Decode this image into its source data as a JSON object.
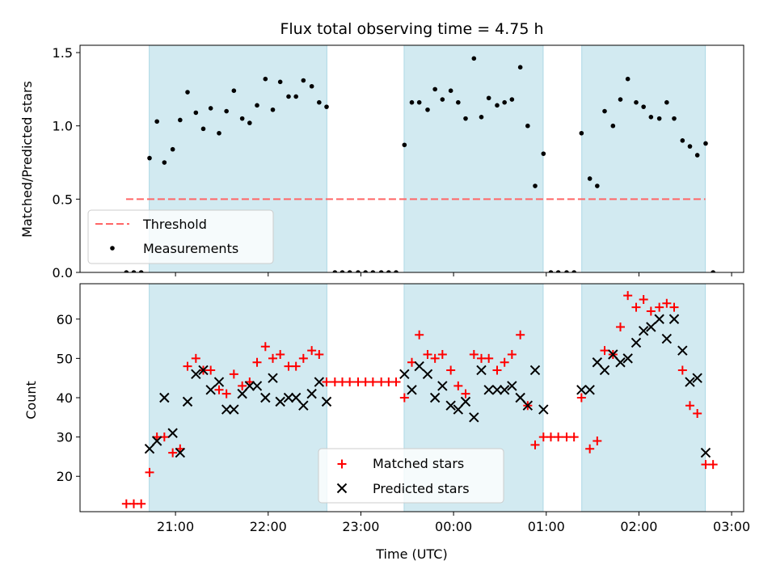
{
  "figure": {
    "title": "Flux total observing time = 4.75 h",
    "xlabel": "Time (UTC)",
    "x_ticks": [
      "21:00",
      "22:00",
      "23:00",
      "00:00",
      "01:00",
      "02:00",
      "03:00"
    ]
  },
  "colors": {
    "band": "#add8e6",
    "threshold": "#ff6666",
    "measurement": "#000000",
    "matched": "#ff0000",
    "predicted": "#000000"
  },
  "chart_data": [
    {
      "type": "scatter",
      "ylabel": "Matched/Predicted stars",
      "x_unit": "hours after 20:00 UTC",
      "xlim": [
        19.97,
        27.13
      ],
      "ylim": [
        0.0,
        1.55
      ],
      "y_ticks": [
        "0.0",
        "0.5",
        "1.0",
        "1.5"
      ],
      "observing_windows_utc": [
        [
          "20:43",
          "22:38"
        ],
        [
          "23:28",
          "00:58"
        ],
        [
          "01:23",
          "02:43"
        ]
      ],
      "threshold": {
        "name": "Threshold",
        "value": 0.5,
        "x_range_utc": [
          "20:28",
          "02:43"
        ]
      },
      "legend": {
        "placement": "lower-left",
        "entries": [
          "Threshold",
          "Measurements"
        ]
      },
      "series": [
        {
          "name": "Measurements",
          "x": [
            20.47,
            20.55,
            20.63,
            20.72,
            20.8,
            20.88,
            20.97,
            21.05,
            21.13,
            21.22,
            21.3,
            21.38,
            21.47,
            21.55,
            21.63,
            21.72,
            21.8,
            21.88,
            21.97,
            22.05,
            22.13,
            22.22,
            22.3,
            22.38,
            22.47,
            22.55,
            22.63,
            22.72,
            22.8,
            22.88,
            22.97,
            23.05,
            23.13,
            23.22,
            23.3,
            23.38,
            23.47,
            23.55,
            23.63,
            23.72,
            23.8,
            23.88,
            23.97,
            24.05,
            24.13,
            24.22,
            24.3,
            24.38,
            24.47,
            24.55,
            24.63,
            24.72,
            24.8,
            24.88,
            24.97,
            25.05,
            25.13,
            25.22,
            25.3,
            25.38,
            25.47,
            25.55,
            25.63,
            25.72,
            25.8,
            25.88,
            25.97,
            26.05,
            26.13,
            26.22,
            26.3,
            26.38,
            26.47,
            26.55,
            26.63,
            26.72,
            26.8
          ],
          "y": [
            0.0,
            0.0,
            0.0,
            0.78,
            1.03,
            0.75,
            0.84,
            1.04,
            1.23,
            1.09,
            0.98,
            1.12,
            0.95,
            1.1,
            1.24,
            1.05,
            1.02,
            1.14,
            1.32,
            1.11,
            1.3,
            1.2,
            1.2,
            1.31,
            1.27,
            1.16,
            1.13,
            0.0,
            0.0,
            0.0,
            0.0,
            0.0,
            0.0,
            0.0,
            0.0,
            0.0,
            0.87,
            1.16,
            1.16,
            1.11,
            1.25,
            1.18,
            1.24,
            1.16,
            1.05,
            1.46,
            1.06,
            1.19,
            1.14,
            1.16,
            1.18,
            1.4,
            1.0,
            0.59,
            0.81,
            0.0,
            0.0,
            0.0,
            0.0,
            0.95,
            0.64,
            0.59,
            1.1,
            1.0,
            1.18,
            1.32,
            1.16,
            1.13,
            1.06,
            1.05,
            1.16,
            1.05,
            0.9,
            0.86,
            0.8,
            0.88,
            0.0
          ]
        }
      ]
    },
    {
      "type": "scatter",
      "ylabel": "Count",
      "x_unit": "hours after 20:00 UTC",
      "xlim": [
        19.97,
        27.13
      ],
      "ylim": [
        11,
        69
      ],
      "y_ticks": [
        "20",
        "30",
        "40",
        "50",
        "60"
      ],
      "legend": {
        "placement": "lower-center",
        "entries": [
          "Matched stars",
          "Predicted stars"
        ]
      },
      "series": [
        {
          "name": "Matched stars",
          "marker": "plus",
          "x": [
            20.47,
            20.55,
            20.63,
            20.72,
            20.8,
            20.88,
            20.97,
            21.05,
            21.13,
            21.22,
            21.3,
            21.38,
            21.47,
            21.55,
            21.63,
            21.72,
            21.8,
            21.88,
            21.97,
            22.05,
            22.13,
            22.22,
            22.3,
            22.38,
            22.47,
            22.55,
            22.63,
            22.72,
            22.8,
            22.88,
            22.97,
            23.05,
            23.13,
            23.22,
            23.3,
            23.38,
            23.47,
            23.55,
            23.63,
            23.72,
            23.8,
            23.88,
            23.97,
            24.05,
            24.13,
            24.22,
            24.3,
            24.38,
            24.47,
            24.55,
            24.63,
            24.72,
            24.8,
            24.88,
            24.97,
            25.05,
            25.13,
            25.22,
            25.3,
            25.38,
            25.47,
            25.55,
            25.63,
            25.72,
            25.8,
            25.88,
            25.97,
            26.05,
            26.13,
            26.22,
            26.3,
            26.38,
            26.47,
            26.55,
            26.63,
            26.72,
            26.8
          ],
          "y": [
            13,
            13,
            13,
            21,
            30,
            30,
            26,
            27,
            48,
            50,
            47,
            47,
            42,
            41,
            46,
            43,
            44,
            49,
            53,
            50,
            51,
            48,
            48,
            50,
            52,
            51,
            44,
            44,
            44,
            44,
            44,
            44,
            44,
            44,
            44,
            44,
            40,
            49,
            56,
            51,
            50,
            51,
            47,
            43,
            41,
            51,
            50,
            50,
            47,
            49,
            51,
            56,
            38,
            28,
            30,
            30,
            30,
            30,
            30,
            40,
            27,
            29,
            52,
            51,
            58,
            66,
            63,
            65,
            62,
            63,
            64,
            63,
            47,
            38,
            36,
            23,
            23
          ]
        },
        {
          "name": "Predicted stars",
          "marker": "x",
          "x": [
            20.72,
            20.8,
            20.88,
            20.97,
            21.05,
            21.13,
            21.22,
            21.3,
            21.38,
            21.47,
            21.55,
            21.63,
            21.72,
            21.8,
            21.88,
            21.97,
            22.05,
            22.13,
            22.22,
            22.3,
            22.38,
            22.47,
            22.55,
            22.63,
            23.47,
            23.55,
            23.63,
            23.72,
            23.8,
            23.88,
            23.97,
            24.05,
            24.13,
            24.22,
            24.3,
            24.38,
            24.47,
            24.55,
            24.63,
            24.72,
            24.8,
            24.88,
            24.97,
            25.38,
            25.47,
            25.55,
            25.63,
            25.72,
            25.8,
            25.88,
            25.97,
            26.05,
            26.13,
            26.22,
            26.3,
            26.38,
            26.47,
            26.55,
            26.63,
            26.72
          ],
          "y": [
            27,
            29,
            40,
            31,
            26,
            39,
            46,
            47,
            42,
            44,
            37,
            37,
            41,
            43,
            43,
            40,
            45,
            39,
            40,
            40,
            38,
            41,
            44,
            39,
            46,
            42,
            48,
            46,
            40,
            43,
            38,
            37,
            39,
            35,
            47,
            42,
            42,
            42,
            43,
            40,
            38,
            47,
            37,
            42,
            42,
            49,
            47,
            51,
            49,
            50,
            54,
            57,
            58,
            60,
            55,
            60,
            52,
            44,
            45,
            26
          ]
        }
      ]
    }
  ]
}
